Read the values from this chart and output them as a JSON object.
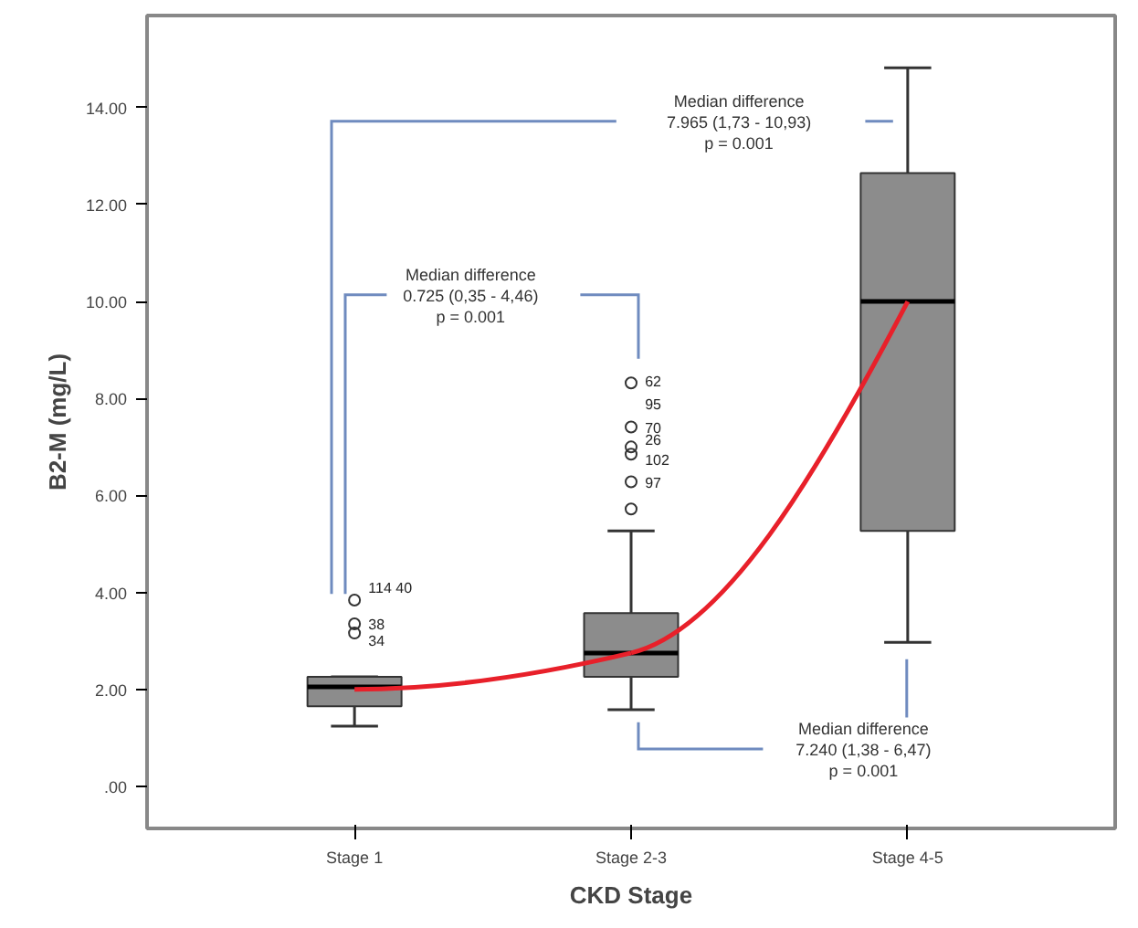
{
  "chart_data": {
    "type": "box",
    "xlabel": "CKD Stage",
    "ylabel": "B2-M (mg/L)",
    "categories": [
      "Stage 1",
      "Stage 2-3",
      "Stage 4-5"
    ],
    "ylim": [
      -0.87,
      15.9
    ],
    "yticks": [
      {
        "value": 0,
        "label": ".00"
      },
      {
        "value": 2,
        "label": "2.00"
      },
      {
        "value": 4,
        "label": "4.00"
      },
      {
        "value": 6,
        "label": "6.00"
      },
      {
        "value": 8,
        "label": "8.00"
      },
      {
        "value": 10,
        "label": "10.00"
      },
      {
        "value": 12,
        "label": "12.00"
      },
      {
        "value": 14,
        "label": "14.00"
      }
    ],
    "grid": false,
    "series": [
      {
        "color": "#8c8c8c",
        "boxes": [
          {
            "low": 1.24,
            "q1": 1.65,
            "median": 2.05,
            "q3": 2.26,
            "high": 2.26,
            "outliers": [
              3.84,
              3.35,
              3.16
            ]
          },
          {
            "low": 1.58,
            "q1": 2.26,
            "median": 2.75,
            "q3": 3.57,
            "high": 5.27,
            "outliers": [
              5.72,
              6.28,
              6.85,
              7.0,
              7.41,
              8.32
            ]
          },
          {
            "low": 2.97,
            "q1": 5.27,
            "median": 10.0,
            "q3": 12.65,
            "high": 14.82
          }
        ]
      },
      {
        "type": "line",
        "color": "#e8202a",
        "values": [
          2.0,
          2.75,
          10.0
        ]
      }
    ],
    "annotations": [
      "Median difference\n0.725 (0,35 - 4,46)\np = 0.001",
      "Median difference\n7.965 (1,73 - 10,93)\np = 0.001",
      "Median difference\n7.240 (1,38 - 6,47)\np = 0.001",
      "114  40",
      "38",
      "34",
      "97",
      "102",
      "26",
      "70",
      "95",
      "62"
    ]
  }
}
